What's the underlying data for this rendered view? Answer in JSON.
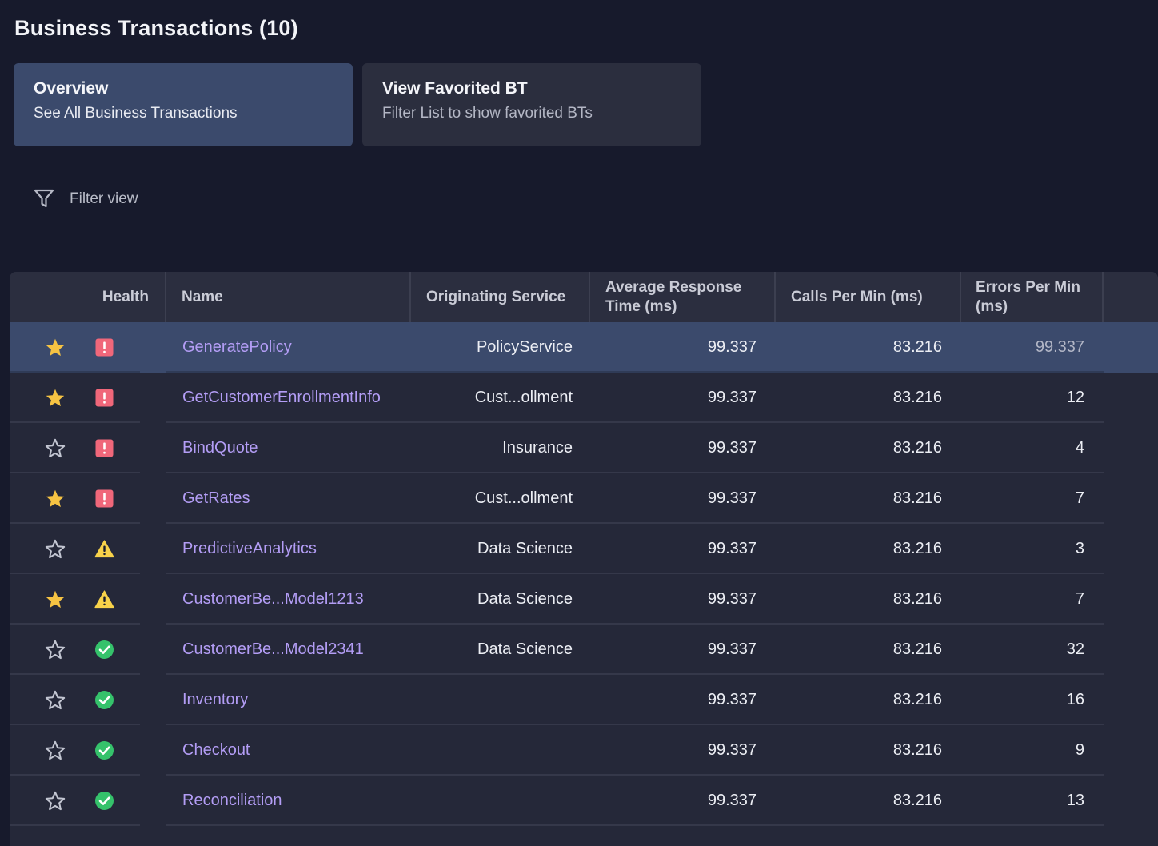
{
  "page": {
    "title": "Business Transactions (10)"
  },
  "cards": [
    {
      "title": "Overview",
      "subtitle": "See All Business Transactions",
      "active": true
    },
    {
      "title": "View Favorited BT",
      "subtitle": "Filter List to show favorited BTs",
      "active": false
    }
  ],
  "filter": {
    "placeholder": "Filter view",
    "value": "",
    "icon": "funnel-icon"
  },
  "table": {
    "headers": {
      "health": "Health",
      "name": "Name",
      "service": "Originating Service",
      "avg_response": "Average Response Time (ms)",
      "calls_per_min": "Calls Per Min (ms)",
      "errors_per_min": "Errors Per Min (ms)"
    },
    "rows": [
      {
        "favorited": true,
        "health": "critical",
        "name": "GeneratePolicy",
        "service": "PolicyService",
        "avg_response": "99.337",
        "calls_per_min": "83.216",
        "errors_per_min": "99.337",
        "selected": true
      },
      {
        "favorited": true,
        "health": "critical",
        "name": "GetCustomerEnrollmentInfo",
        "service": "Cust...ollment",
        "avg_response": "99.337",
        "calls_per_min": "83.216",
        "errors_per_min": "12"
      },
      {
        "favorited": false,
        "health": "critical",
        "name": "BindQuote",
        "service": "Insurance",
        "avg_response": "99.337",
        "calls_per_min": "83.216",
        "errors_per_min": "4"
      },
      {
        "favorited": true,
        "health": "critical",
        "name": "GetRates",
        "service": "Cust...ollment",
        "avg_response": "99.337",
        "calls_per_min": "83.216",
        "errors_per_min": "7"
      },
      {
        "favorited": false,
        "health": "warning",
        "name": "PredictiveAnalytics",
        "service": "Data Science",
        "avg_response": "99.337",
        "calls_per_min": "83.216",
        "errors_per_min": "3"
      },
      {
        "favorited": true,
        "health": "warning",
        "name": "CustomerBe...Model1213",
        "service": "Data Science",
        "avg_response": "99.337",
        "calls_per_min": "83.216",
        "errors_per_min": "7"
      },
      {
        "favorited": false,
        "health": "normal",
        "name": "CustomerBe...Model2341",
        "service": "Data Science",
        "avg_response": "99.337",
        "calls_per_min": "83.216",
        "errors_per_min": "32"
      },
      {
        "favorited": false,
        "health": "normal",
        "name": "Inventory",
        "service": "",
        "avg_response": "99.337",
        "calls_per_min": "83.216",
        "errors_per_min": "16"
      },
      {
        "favorited": false,
        "health": "normal",
        "name": "Checkout",
        "service": "",
        "avg_response": "99.337",
        "calls_per_min": "83.216",
        "errors_per_min": "9"
      },
      {
        "favorited": false,
        "health": "normal",
        "name": "Reconciliation",
        "service": "",
        "avg_response": "99.337",
        "calls_per_min": "83.216",
        "errors_per_min": "13"
      }
    ]
  },
  "colors": {
    "background": "#171a2c",
    "accent_link": "#b39df5",
    "selected_row": "#3b4a6c",
    "star_filled": "#f6c343",
    "critical": "#f0677a",
    "warning": "#f8d24a",
    "normal": "#35c26b"
  }
}
